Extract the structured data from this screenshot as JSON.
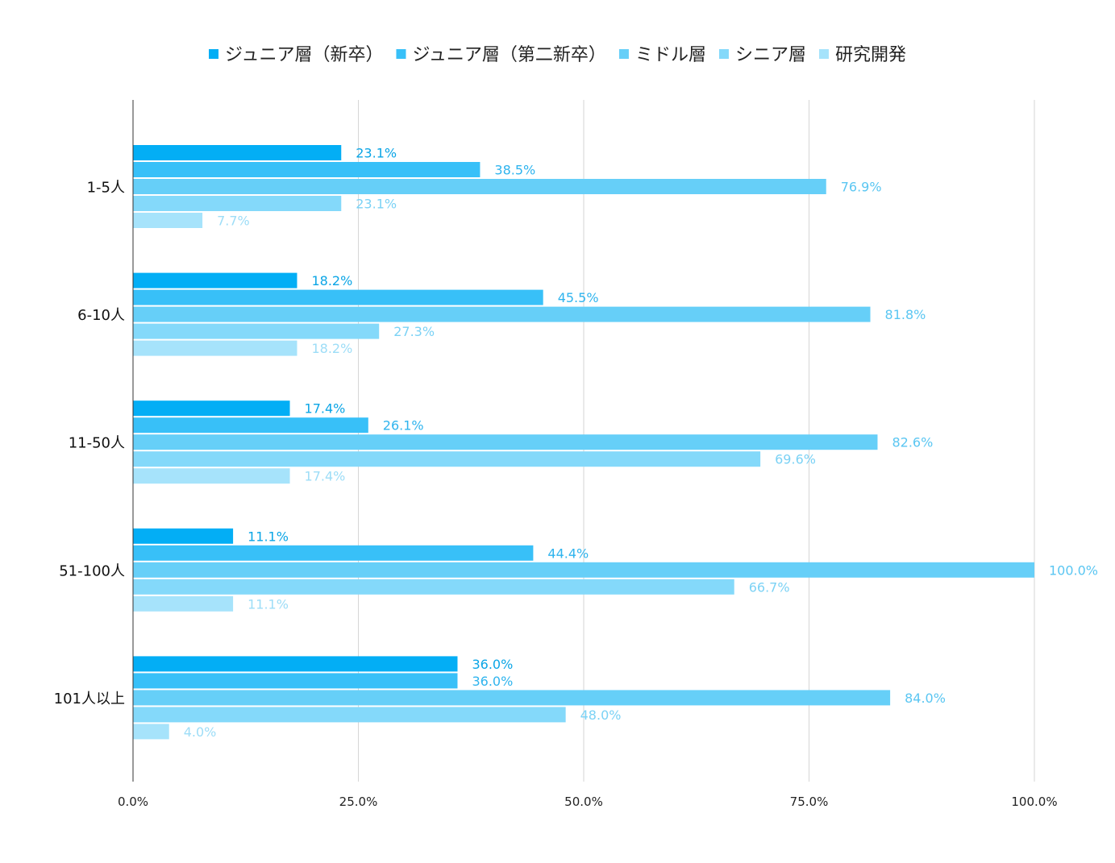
{
  "chart_data": {
    "type": "bar",
    "orientation": "horizontal",
    "title": "",
    "xlabel": "",
    "ylabel": "",
    "xlim": [
      0,
      100
    ],
    "x_ticks": [
      "0.0%",
      "25.0%",
      "50.0%",
      "75.0%",
      "100.0%"
    ],
    "grid": true,
    "legend_position": "top",
    "categories": [
      "1-5人",
      "6-10人",
      "11-50人",
      "51-100人",
      "101人以上"
    ],
    "series": [
      {
        "name": "ジュニア層（新卒）",
        "color": "#03AEF5",
        "label_color": "#0AA5E6",
        "values": [
          23.1,
          18.2,
          17.4,
          11.1,
          36.0
        ],
        "labels": [
          "23.1%",
          "18.2%",
          "17.4%",
          "11.1%",
          "36.0%"
        ]
      },
      {
        "name": "ジュニア層（第二新卒）",
        "color": "#38C0F8",
        "label_color": "#2FB4EE",
        "values": [
          38.5,
          45.5,
          26.1,
          44.4,
          36.0
        ],
        "labels": [
          "38.5%",
          "45.5%",
          "26.1%",
          "44.4%",
          "36.0%"
        ]
      },
      {
        "name": "ミドル層",
        "color": "#66CFF8",
        "label_color": "#5AC6F2",
        "values": [
          76.9,
          81.8,
          82.6,
          100.0,
          84.0
        ],
        "labels": [
          "76.9%",
          "81.8%",
          "82.6%",
          "100.0%",
          "84.0%"
        ]
      },
      {
        "name": "シニア層",
        "color": "#84D9FA",
        "label_color": "#7BD2F5",
        "values": [
          23.1,
          27.3,
          69.6,
          66.7,
          48.0
        ],
        "labels": [
          "23.1%",
          "27.3%",
          "69.6%",
          "66.7%",
          "48.0%"
        ]
      },
      {
        "name": "研究開発",
        "color": "#A6E3FB",
        "label_color": "#9DDDF7",
        "values": [
          7.7,
          18.2,
          17.4,
          11.1,
          4.0
        ],
        "labels": [
          "7.7%",
          "18.2%",
          "17.4%",
          "11.1%",
          "4.0%"
        ]
      }
    ]
  }
}
